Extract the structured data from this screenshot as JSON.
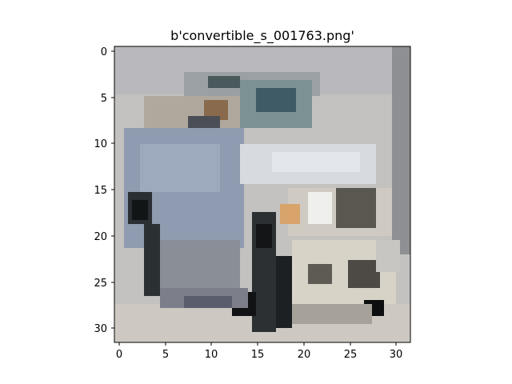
{
  "figure": {
    "title": "b'convertible_s_001763.png'",
    "image_description_icon": "car-photo-pixelated-icon"
  },
  "axes": {
    "x_ticks": [
      "0",
      "5",
      "10",
      "15",
      "20",
      "25",
      "30"
    ],
    "y_ticks": [
      "0",
      "5",
      "10",
      "15",
      "20",
      "25",
      "30"
    ]
  },
  "colors": {
    "background": "#c8c6c3",
    "body_gray_blue": "#8e9bb0",
    "windshield": "#6f8a8f",
    "dark": "#1e2224",
    "light_panel": "#dcd8cc",
    "headlight": "#d9a36c"
  }
}
